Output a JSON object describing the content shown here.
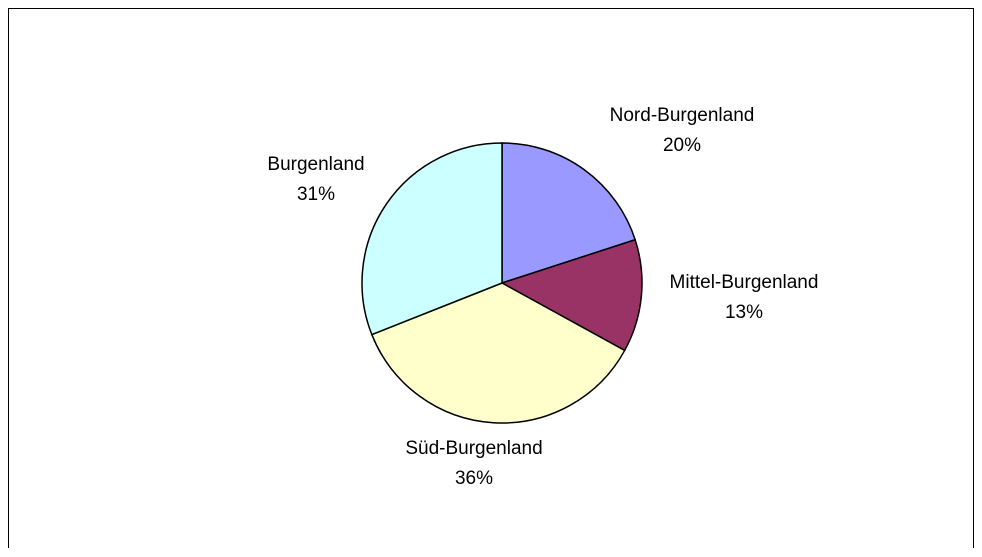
{
  "chart_data": {
    "type": "pie",
    "title": "",
    "categories": [
      "Nord-Burgenland",
      "Mittel-Burgenland",
      "Süd-Burgenland",
      "Burgenland"
    ],
    "values": [
      20,
      13,
      36,
      31
    ],
    "labels": [
      "20%",
      "13%",
      "36%",
      "31%"
    ],
    "colors": [
      "#9999FF",
      "#993366",
      "#FFFFCC",
      "#CCFFFF"
    ],
    "legend": "none",
    "start_angle_deg": 0,
    "direction": "clockwise"
  }
}
